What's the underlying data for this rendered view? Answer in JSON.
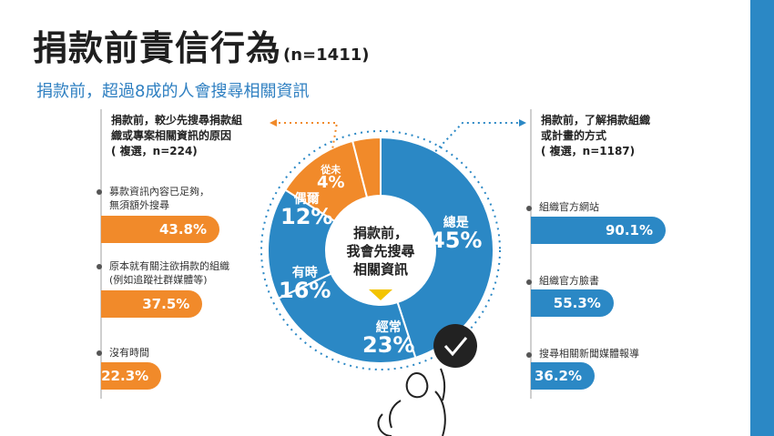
{
  "title": "捐款前責信行為",
  "title_n": "(n=1411)",
  "subtitle": "捐款前，超過8成的人會搜尋相關資訊",
  "center": {
    "line1": "捐款前，",
    "line2": "我會先搜尋",
    "line3": "相關資訊"
  },
  "left_panel": {
    "heading_line1": "捐款前，較少先搜尋捐款組",
    "heading_line2": "織或專案相關資訊的原因",
    "note": "( 複選，n=224)",
    "items": [
      {
        "label_line1": "募款資訊內容已足夠，",
        "label_line2": "無須額外搜尋",
        "value": "43.8%"
      },
      {
        "label_line1": "原本就有關注欲捐款的組織",
        "label_line2": "(例如追蹤社群媒體等)",
        "value": "37.5%"
      },
      {
        "label_line1": "沒有時間",
        "label_line2": "",
        "value": "22.3%"
      }
    ]
  },
  "right_panel": {
    "heading_line1": "捐款前，了解捐款組織",
    "heading_line2": "或計畫的方式",
    "note": "( 複選，n=1187)",
    "items": [
      {
        "label": "組織官方網站",
        "value": "90.1%"
      },
      {
        "label": "組織官方臉書",
        "value": "55.3%"
      },
      {
        "label": "搜尋相關新聞媒體報導",
        "value": "36.2%"
      }
    ]
  },
  "colors": {
    "blue": "#2b88c5",
    "orange": "#f18a2a",
    "dark": "#1f1f1f"
  },
  "chart_data": [
    {
      "type": "pie",
      "title": "",
      "categories": [
        "總是",
        "經常",
        "有時",
        "偶爾",
        "從未"
      ],
      "values": [
        45,
        23,
        16,
        12,
        4
      ],
      "labels": [
        "45%",
        "23%",
        "16%",
        "12%",
        "4%"
      ],
      "colors": [
        "#2b88c5",
        "#2b88c5",
        "#2b88c5",
        "#f18a2a",
        "#f18a2a"
      ]
    },
    {
      "type": "bar",
      "title": "捐款前，較少先搜尋捐款組織或專案相關資訊的原因",
      "categories": [
        "募款資訊內容已足夠，無須額外搜尋",
        "原本就有關注欲捐款的組織(例如追蹤社群媒體等)",
        "沒有時間"
      ],
      "values": [
        43.8,
        37.5,
        22.3
      ]
    },
    {
      "type": "bar",
      "title": "捐款前，了解捐款組織或計畫的方式",
      "categories": [
        "組織官方網站",
        "組織官方臉書",
        "搜尋相關新聞媒體報導"
      ],
      "values": [
        90.1,
        55.3,
        36.2
      ]
    }
  ]
}
